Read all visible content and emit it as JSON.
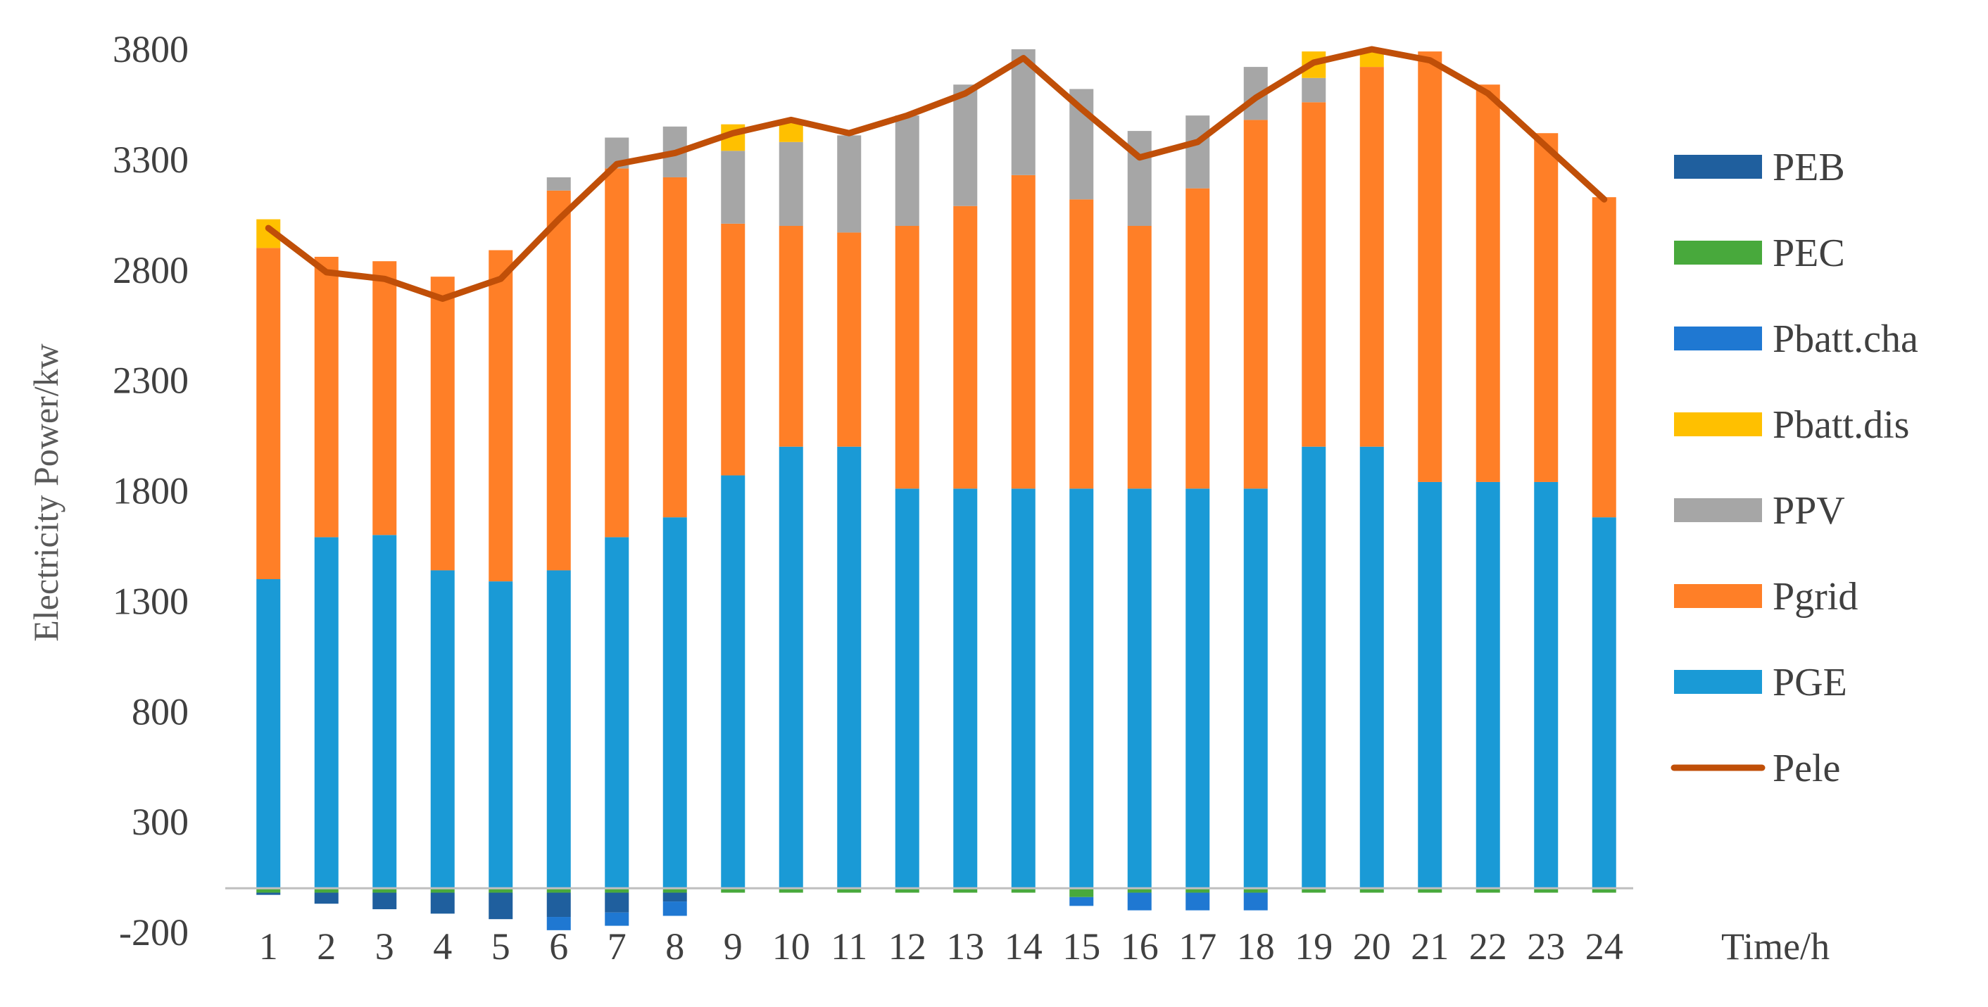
{
  "chart_data": {
    "type": "bar",
    "stacked": true,
    "title": "",
    "xlabel": "Time/h",
    "ylabel": "Electricity Power/kw",
    "ylim": [
      -200,
      3800
    ],
    "yticks": [
      -200,
      300,
      800,
      1300,
      1800,
      2300,
      2800,
      3300,
      3800
    ],
    "grid": false,
    "legend_position": "right",
    "categories": [
      "1",
      "2",
      "3",
      "4",
      "5",
      "6",
      "7",
      "8",
      "9",
      "10",
      "11",
      "12",
      "13",
      "14",
      "15",
      "16",
      "17",
      "18",
      "19",
      "20",
      "21",
      "22",
      "23",
      "24"
    ],
    "series": [
      {
        "name": "PEB",
        "color": "#1F5F9E",
        "values": [
          -10,
          -50,
          -75,
          -95,
          -120,
          -110,
          -90,
          -40,
          0,
          0,
          0,
          0,
          0,
          0,
          0,
          0,
          0,
          0,
          0,
          0,
          0,
          0,
          0,
          0
        ]
      },
      {
        "name": "PEC",
        "color": "#48A93C",
        "values": [
          -20,
          -20,
          -20,
          -20,
          -20,
          -20,
          -20,
          -20,
          -20,
          -20,
          -20,
          -20,
          -20,
          -20,
          -40,
          -20,
          -20,
          -20,
          -20,
          -20,
          -20,
          -20,
          -20,
          -20
        ]
      },
      {
        "name": "Pbatt.cha",
        "color": "#1F78D2",
        "values": [
          0,
          0,
          0,
          0,
          0,
          -60,
          -60,
          -65,
          0,
          0,
          0,
          0,
          0,
          0,
          -40,
          -80,
          -80,
          -80,
          0,
          0,
          0,
          0,
          0,
          0
        ]
      },
      {
        "name": "Pbatt.dis",
        "color": "#FFC000",
        "values": [
          130,
          0,
          0,
          0,
          0,
          0,
          0,
          0,
          120,
          100,
          0,
          0,
          0,
          0,
          0,
          0,
          0,
          0,
          120,
          80,
          0,
          0,
          0,
          0
        ]
      },
      {
        "name": "PPV",
        "color": "#A6A6A6",
        "values": [
          0,
          0,
          0,
          0,
          0,
          60,
          140,
          230,
          330,
          380,
          440,
          500,
          550,
          570,
          500,
          430,
          330,
          240,
          110,
          0,
          0,
          0,
          0,
          0
        ]
      },
      {
        "name": "Pgrid",
        "color": "#FF7F27",
        "values": [
          1500,
          1270,
          1240,
          1330,
          1500,
          1720,
          1670,
          1540,
          1140,
          1000,
          970,
          1190,
          1280,
          1420,
          1310,
          1190,
          1360,
          1670,
          1560,
          1720,
          1950,
          1800,
          1580,
          1450
        ]
      },
      {
        "name": "PGE",
        "color": "#1A9AD6",
        "values": [
          1400,
          1590,
          1600,
          1440,
          1390,
          1440,
          1590,
          1680,
          1870,
          2000,
          2000,
          1810,
          1810,
          1810,
          1810,
          1810,
          1810,
          1810,
          2000,
          2000,
          1840,
          1840,
          1840,
          1680
        ]
      },
      {
        "name": "Pele",
        "color": "#C04F08",
        "type": "line",
        "values": [
          2990,
          2790,
          2760,
          2670,
          2760,
          3030,
          3280,
          3330,
          3420,
          3480,
          3420,
          3500,
          3600,
          3760,
          3530,
          3310,
          3380,
          3580,
          3740,
          3800,
          3750,
          3600,
          3360,
          3120
        ]
      }
    ]
  }
}
